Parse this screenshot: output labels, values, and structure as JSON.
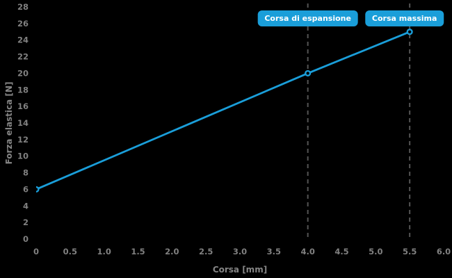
{
  "chart_data": {
    "type": "line",
    "title": "",
    "xlabel": "Corsa [mm]",
    "ylabel": "Forza elastica [N]",
    "xlim": [
      0,
      6.0
    ],
    "ylim": [
      0,
      28
    ],
    "xtick_values": [
      0,
      0.5,
      1.0,
      1.5,
      2.0,
      2.5,
      3.0,
      3.5,
      4.0,
      4.5,
      5.0,
      5.5,
      6.0
    ],
    "xtick_labels": [
      "0",
      "0.5",
      "1.0",
      "1.5",
      "2.0",
      "2.5",
      "3.0",
      "3.5",
      "4.0",
      "4.5",
      "5.0",
      "5.5",
      "6.0"
    ],
    "ytick_values": [
      0,
      2,
      4,
      6,
      8,
      10,
      12,
      14,
      16,
      18,
      20,
      22,
      24,
      26,
      28
    ],
    "ytick_labels": [
      "0",
      "2",
      "4",
      "6",
      "8",
      "10",
      "12",
      "14",
      "16",
      "18",
      "20",
      "22",
      "24",
      "26",
      "28"
    ],
    "grid": false,
    "legend": "none",
    "series": [
      {
        "name": "Forza elastica",
        "x": [
          0,
          4.0,
          5.5
        ],
        "y": [
          6,
          20,
          25
        ],
        "marker": "circle"
      }
    ],
    "annotations": [
      {
        "label": "Corsa di espansione",
        "x": 4.0
      },
      {
        "label": "Corsa massima",
        "x": 5.5
      }
    ],
    "colors": {
      "line": "#1a9ed9",
      "marker_edge": "#1a9ed9",
      "marker_face": "#000000",
      "dashed_line": "#545454",
      "tick_text": "#808080",
      "axis_title_text": "#858585",
      "annotation_bg": "#1a9ed9",
      "annotation_text": "#ffffff",
      "background": "#000000"
    }
  }
}
